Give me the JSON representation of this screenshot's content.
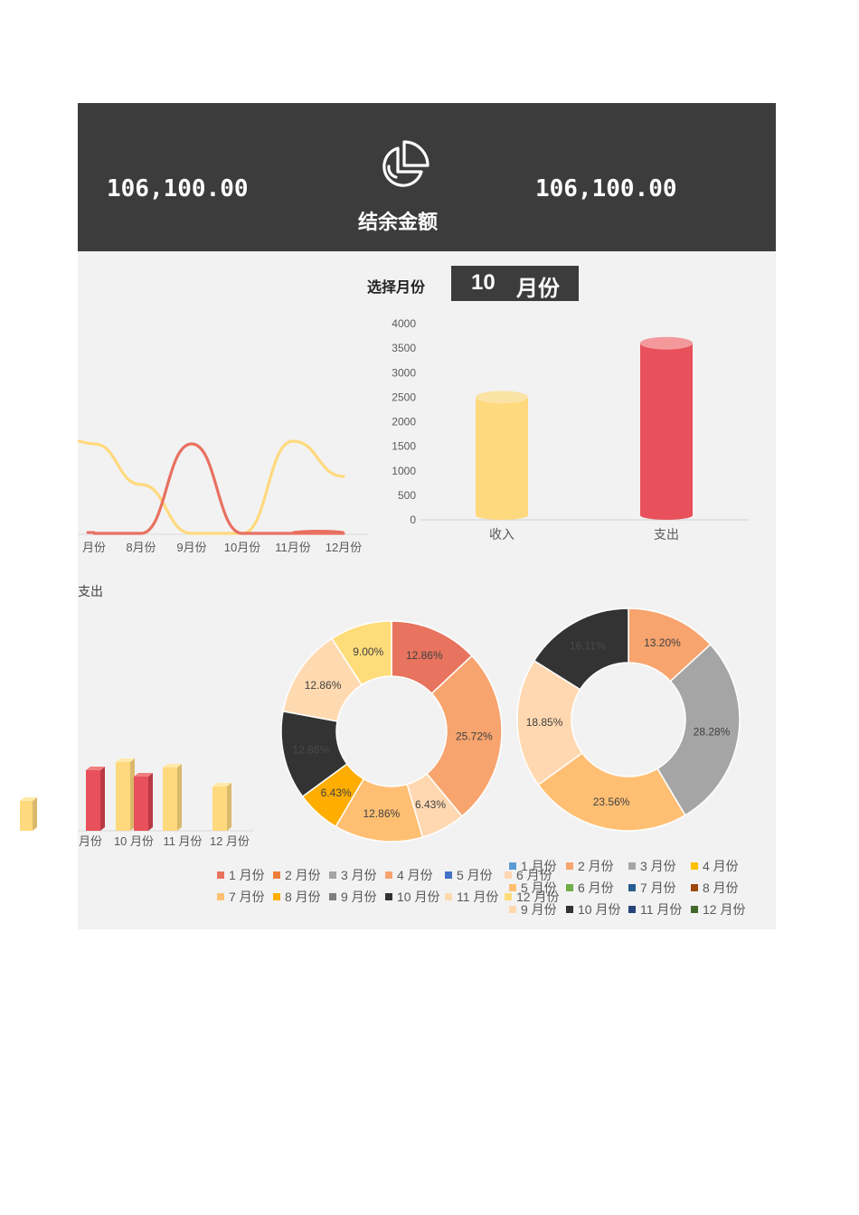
{
  "header": {
    "amount_left": "106,100.00",
    "amount_right": "106,100.00",
    "title": "结余金额",
    "logo_icon": "pie-chart-icon"
  },
  "selector": {
    "label": "选择月份",
    "value": "10",
    "unit": "月份"
  },
  "side_label": "支出",
  "chart_data": [
    {
      "type": "line",
      "categories": [
        "月份",
        "8月份",
        "9月份",
        "10月份",
        "11月份",
        "12月份"
      ],
      "series": [
        {
          "color": "#ffd97d",
          "values": [
            1650,
            900,
            0,
            0,
            1700,
            1050
          ]
        },
        {
          "color": "#e87060",
          "values": [
            0,
            0,
            1650,
            0,
            0,
            0
          ]
        }
      ]
    },
    {
      "type": "bar",
      "categories": [
        "收入",
        "支出"
      ],
      "values": [
        2500,
        3600
      ],
      "colors": [
        "#ffd97d",
        "#e8505b"
      ],
      "yticks": [
        "0",
        "500",
        "1000",
        "1500",
        "2000",
        "2500",
        "3000",
        "3500",
        "4000"
      ],
      "ylim": [
        0,
        4000
      ]
    },
    {
      "type": "bar",
      "categories": [
        "月份",
        "10 月份",
        "11 月份",
        "12 月份"
      ],
      "colors": [
        "#ffd97d",
        "#e8505b"
      ]
    },
    {
      "type": "pie",
      "variant": "donut",
      "slices": [
        {
          "label": "12.86%",
          "value": 12.86,
          "color": "#e8735e"
        },
        {
          "label": "25.72%",
          "value": 25.72,
          "color": "#f7a46e"
        },
        {
          "label": "6.43%",
          "value": 6.43,
          "color": "#ffd8b1"
        },
        {
          "label": "12.86%",
          "value": 12.86,
          "color": "#ffbf73"
        },
        {
          "label": "6.43%",
          "value": 6.43,
          "color": "#ffad00"
        },
        {
          "label": "12.86%",
          "value": 12.86,
          "color": "#333333"
        },
        {
          "label": "12.86%",
          "value": 12.86,
          "color": "#ffd9b0"
        },
        {
          "label": "9.00%",
          "value": 9.0,
          "color": "#ffdc7a"
        }
      ],
      "legend": [
        {
          "label": "1 月份",
          "color": "#e8735e"
        },
        {
          "label": "2 月份",
          "color": "#ef7d3c"
        },
        {
          "label": "3 月份",
          "color": "#a5a5a5"
        },
        {
          "label": "4 月份",
          "color": "#f7a46e"
        },
        {
          "label": "5 月份",
          "color": "#4472c4"
        },
        {
          "label": "6 月份",
          "color": "#ffd8b1"
        },
        {
          "label": "7 月份",
          "color": "#ffbf73"
        },
        {
          "label": "8 月份",
          "color": "#ffad00"
        },
        {
          "label": "9 月份",
          "color": "#7f7f7f"
        },
        {
          "label": "10 月份",
          "color": "#333333"
        },
        {
          "label": "11 月份",
          "color": "#ffd9b0"
        },
        {
          "label": "12 月份",
          "color": "#ffdc7a"
        }
      ]
    },
    {
      "type": "pie",
      "variant": "donut",
      "slices": [
        {
          "label": "13.20%",
          "value": 13.2,
          "color": "#f7a46e"
        },
        {
          "label": "28.28%",
          "value": 28.28,
          "color": "#a5a5a5"
        },
        {
          "label": "23.56%",
          "value": 23.56,
          "color": "#ffbf73"
        },
        {
          "label": "18.85%",
          "value": 18.85,
          "color": "#ffd8b1"
        },
        {
          "label": "16.11%",
          "value": 16.11,
          "color": "#333333"
        }
      ],
      "legend": [
        {
          "label": "1 月份",
          "color": "#5b9bd5"
        },
        {
          "label": "2 月份",
          "color": "#f7a46e"
        },
        {
          "label": "3 月份",
          "color": "#a5a5a5"
        },
        {
          "label": "4 月份",
          "color": "#ffc000"
        },
        {
          "label": "5 月份",
          "color": "#ffbf73"
        },
        {
          "label": "6 月份",
          "color": "#70ad47"
        },
        {
          "label": "7 月份",
          "color": "#255e91"
        },
        {
          "label": "8 月份",
          "color": "#9e480e"
        },
        {
          "label": "9 月份",
          "color": "#ffd8b1"
        },
        {
          "label": "10 月份",
          "color": "#333333"
        },
        {
          "label": "11 月份",
          "color": "#264478"
        },
        {
          "label": "12 月份",
          "color": "#43682b"
        }
      ]
    }
  ]
}
